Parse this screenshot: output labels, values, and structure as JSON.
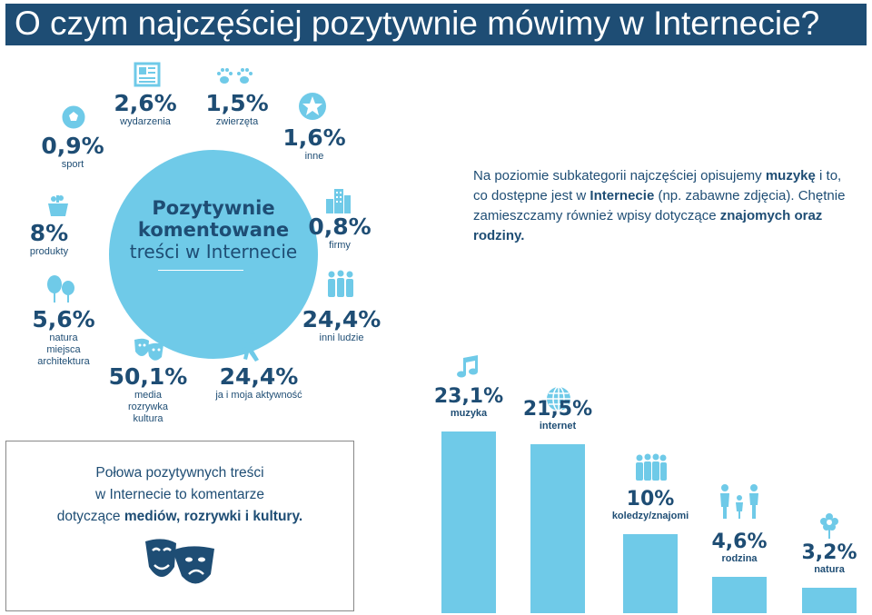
{
  "title": "O czym najczęściej pozytywnie mówimy w Internecie?",
  "circle": {
    "title_line1": "Pozytywnie",
    "title_line2": "komentowane",
    "subtitle": "treści w Internecie"
  },
  "categories": [
    {
      "value": "0,9%",
      "label": "sport",
      "icon": "soccer-ball-icon"
    },
    {
      "value": "2,6%",
      "label": "wydarzenia",
      "icon": "newspaper-icon"
    },
    {
      "value": "1,5%",
      "label": "zwierzęta",
      "icon": "paw-prints-icon"
    },
    {
      "value": "1,6%",
      "label": "inne",
      "icon": "star-icon"
    },
    {
      "value": "8%",
      "label": "produkty",
      "icon": "shopping-basket-icon"
    },
    {
      "value": "0,8%",
      "label": "firmy",
      "icon": "buildings-icon"
    },
    {
      "value": "5,6%",
      "label_lines": [
        "natura",
        "miejsca",
        "architektura"
      ],
      "icon": "trees-icon"
    },
    {
      "value": "24,4%",
      "label": "inni ludzie",
      "icon": "people-group-icon"
    },
    {
      "value": "50,1%",
      "label_lines": [
        "media",
        "rozrywka",
        "kultura"
      ],
      "icon": "theater-masks-icon"
    },
    {
      "value": "24,4%",
      "label": "ja i moja aktywność",
      "icon": "running-person-icon"
    }
  ],
  "note_top": {
    "p1": "Na poziomie subkategorii najczęściej opisujemy ",
    "b1": "muzykę",
    "p2": " i to, co dostępne jest w ",
    "b2": "Internecie",
    "p3": " (np. zabawne zdjęcia). Chętnie zamieszczamy również wpisy dotyczące ",
    "b3": "znajomych oraz rodziny."
  },
  "box": {
    "line1": "Połowa pozytywnych treści",
    "line2": "w Internecie to komentarze",
    "line3_prefix": "dotyczące ",
    "line3_bold": "mediów, rozrywki i kultury."
  },
  "colors": {
    "dark_blue": "#1e4d74",
    "light_blue": "#6fcae8",
    "white": "#ffffff"
  },
  "chart_data": {
    "type": "bar",
    "categories": [
      "muzyka",
      "internet",
      "koledzy/znajomi",
      "rodzina",
      "natura"
    ],
    "values": [
      23.1,
      21.5,
      10,
      4.6,
      3.2
    ],
    "value_labels": [
      "23,1%",
      "21,5%",
      "10%",
      "4,6%",
      "3,2%"
    ],
    "icons": [
      "music-note-icon",
      "globe-icon",
      "friends-group-icon",
      "family-icon",
      "flower-icon"
    ],
    "ylim": [
      0,
      23.1
    ]
  }
}
